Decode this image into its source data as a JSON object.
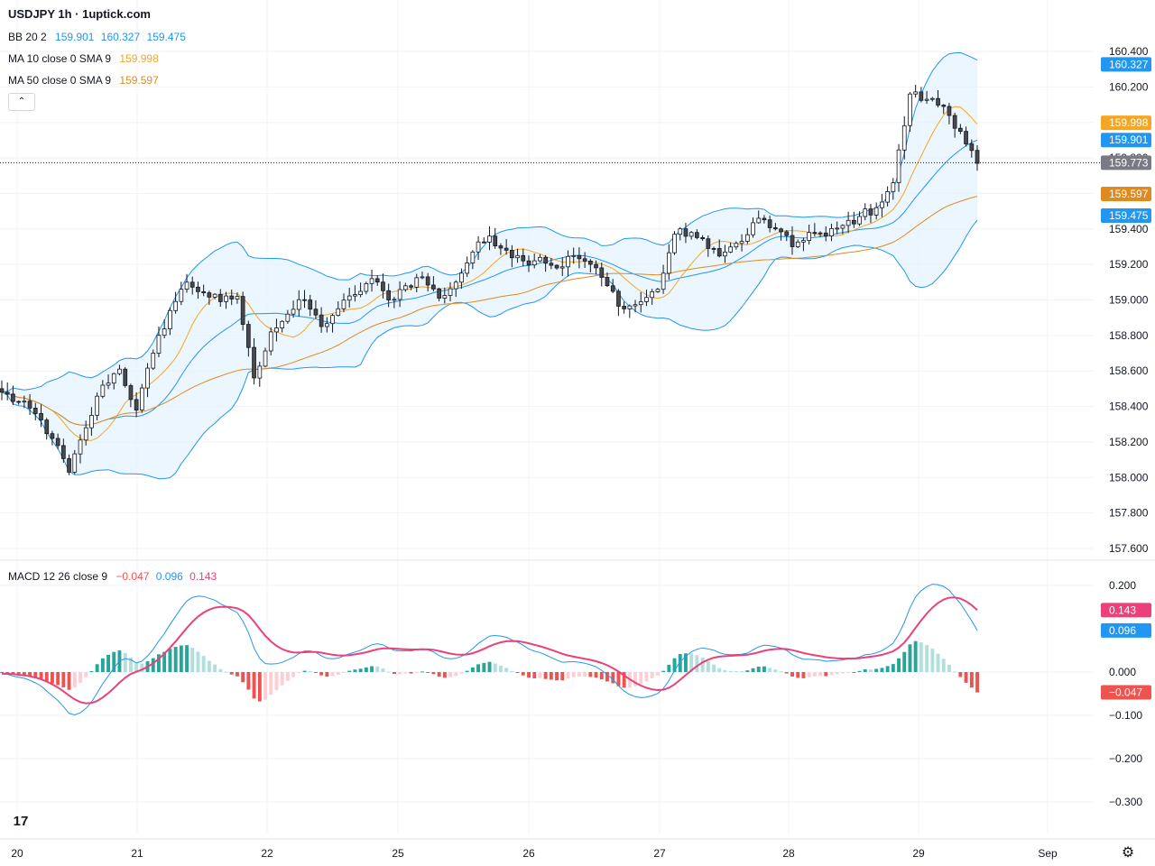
{
  "title": "USDJPY 1h · 1uptick.com",
  "legends": {
    "bb": {
      "label": "BB 20 2",
      "v1": "159.901",
      "v2": "160.327",
      "v3": "159.475"
    },
    "ma10": {
      "label": "MA 10 close 0 SMA 9",
      "v": "159.998"
    },
    "ma50": {
      "label": "MA 50 close 0 SMA 9",
      "v": "159.597"
    },
    "macd": {
      "label": "MACD 12 26 close 9",
      "v1": "−0.047",
      "v2": "0.096",
      "v3": "0.143"
    }
  },
  "colors": {
    "up": "#ffffff",
    "down": "#4a4a4a",
    "wick": "#131722",
    "bb": "#2196f3",
    "bb_fill": "#e3f2fd",
    "ma10": "#f5a623",
    "ma50": "#e08a1e",
    "macd_line": "#2196f3",
    "signal": "#ec407a",
    "hist_up_strong": "#26a69a",
    "hist_up_weak": "#b2dfdb",
    "hist_down_strong": "#ef5350",
    "hist_down_weak": "#ffcdd2"
  },
  "chart_data": [
    {
      "type": "candlestick",
      "price_ticks": [
        "160.400",
        "160.200",
        "160.000",
        "159.800",
        "159.600",
        "159.400",
        "159.200",
        "159.000",
        "158.800",
        "158.600",
        "158.400",
        "158.200",
        "158.000",
        "157.800",
        "157.600"
      ],
      "ylim": [
        157.56,
        160.44
      ],
      "x_ticks": [
        "20",
        "21",
        "22",
        "25",
        "26",
        "27",
        "28",
        "29",
        "Sep"
      ],
      "last_price": "159.773",
      "price_labels": [
        {
          "name": "bb-upper",
          "text": "160.327",
          "value": 160.327,
          "color": "#2196f3"
        },
        {
          "name": "ma10",
          "text": "159.998",
          "value": 159.998,
          "color": "#f5a623"
        },
        {
          "name": "bb-basis",
          "text": "159.901",
          "value": 159.901,
          "color": "#2196f3"
        },
        {
          "name": "last",
          "text": "159.773",
          "value": 159.773,
          "color": "#787b86"
        },
        {
          "name": "ma50",
          "text": "159.597",
          "value": 159.597,
          "color": "#e08a1e"
        },
        {
          "name": "bb-lower",
          "text": "159.475",
          "value": 159.475,
          "color": "#2196f3"
        }
      ],
      "anchors": [
        [
          0,
          158.48
        ],
        [
          6,
          158.36
        ],
        [
          9,
          158.22
        ],
        [
          12,
          158.03
        ],
        [
          15,
          158.28
        ],
        [
          18,
          158.52
        ],
        [
          21,
          158.61
        ],
        [
          24,
          158.38
        ],
        [
          27,
          158.7
        ],
        [
          30,
          158.94
        ],
        [
          33,
          159.1
        ],
        [
          36,
          159.04
        ],
        [
          39,
          158.99
        ],
        [
          42,
          159.02
        ],
        [
          45,
          158.56
        ],
        [
          48,
          158.82
        ],
        [
          51,
          158.92
        ],
        [
          54,
          159.0
        ],
        [
          57,
          158.85
        ],
        [
          60,
          158.95
        ],
        [
          63,
          159.03
        ],
        [
          66,
          159.12
        ],
        [
          69,
          159.0
        ],
        [
          72,
          159.08
        ],
        [
          75,
          159.13
        ],
        [
          78,
          159.01
        ],
        [
          81,
          159.1
        ],
        [
          84,
          159.27
        ],
        [
          87,
          159.36
        ],
        [
          90,
          159.28
        ],
        [
          93,
          159.22
        ],
        [
          96,
          159.24
        ],
        [
          99,
          159.18
        ],
        [
          102,
          159.25
        ],
        [
          105,
          159.2
        ],
        [
          108,
          159.08
        ],
        [
          111,
          158.95
        ],
        [
          114,
          158.99
        ],
        [
          117,
          159.06
        ],
        [
          120,
          159.37
        ],
        [
          123,
          159.38
        ],
        [
          126,
          159.29
        ],
        [
          129,
          159.27
        ],
        [
          132,
          159.33
        ],
        [
          135,
          159.46
        ],
        [
          138,
          159.4
        ],
        [
          141,
          159.3
        ],
        [
          144,
          159.38
        ],
        [
          147,
          159.36
        ],
        [
          150,
          159.42
        ],
        [
          153,
          159.47
        ],
        [
          156,
          159.52
        ],
        [
          159,
          159.66
        ],
        [
          162,
          160.16
        ],
        [
          165,
          160.13
        ],
        [
          168,
          160.09
        ],
        [
          171,
          159.95
        ],
        [
          174,
          159.77
        ]
      ]
    },
    {
      "type": "macd",
      "ticks": [
        "0.200",
        "0.000",
        "−0.100",
        "−0.200",
        "−0.300"
      ],
      "tick_values": [
        0.2,
        0.0,
        -0.1,
        -0.2,
        -0.3
      ],
      "ylim": [
        -0.36,
        0.23
      ],
      "macd_label": "0.096",
      "signal_label": "0.143",
      "hist_label": "−0.047",
      "macd_value": 0.096,
      "signal_value": 0.143,
      "hist_value": -0.047
    }
  ]
}
